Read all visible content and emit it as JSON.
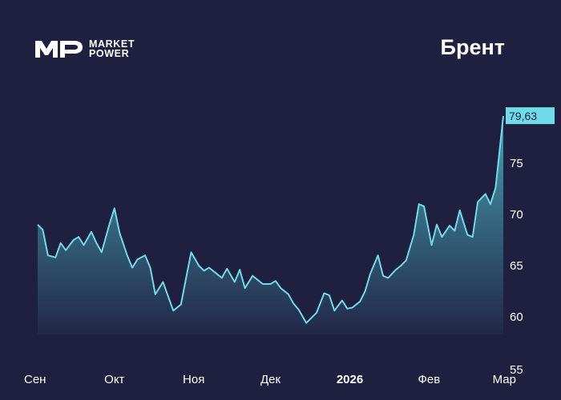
{
  "brand": {
    "logo_mark": "MP",
    "line1": "MARKET",
    "line2": "POWER"
  },
  "title": "Брент",
  "colors": {
    "background": "#1f2040",
    "line": "#6fdbe8",
    "label_box": "#6fdbe8",
    "text": "#ffffff"
  },
  "chart_data": {
    "type": "area",
    "title": "Брент",
    "xlabel": "",
    "ylabel": "",
    "ylim": [
      55,
      82
    ],
    "y_ticks": [
      60,
      65,
      70,
      75
    ],
    "y_axis_min_label": "55",
    "x_ticks": [
      {
        "label": "Сен",
        "date": "2025-09-01",
        "bold": false
      },
      {
        "label": "Окт",
        "date": "2025-10-01",
        "bold": false
      },
      {
        "label": "Ноя",
        "date": "2025-11-01",
        "bold": false
      },
      {
        "label": "Дек",
        "date": "2025-12-01",
        "bold": false
      },
      {
        "label": "2026",
        "date": "2026-01-01",
        "bold": true
      },
      {
        "label": "Фев",
        "date": "2026-02-01",
        "bold": false
      },
      {
        "label": "Мар",
        "date": "2026-03-01",
        "bold": false
      }
    ],
    "last_value_label": "79,63",
    "series": [
      {
        "values": [
          [
            "2025-09-01",
            69.0
          ],
          [
            "2025-09-03",
            68.5
          ],
          [
            "2025-09-05",
            66.0
          ],
          [
            "2025-09-08",
            65.8
          ],
          [
            "2025-09-10",
            67.2
          ],
          [
            "2025-09-12",
            66.5
          ],
          [
            "2025-09-15",
            67.5
          ],
          [
            "2025-09-17",
            67.8
          ],
          [
            "2025-09-19",
            67.0
          ],
          [
            "2025-09-22",
            68.3
          ],
          [
            "2025-09-24",
            67.2
          ],
          [
            "2025-09-26",
            66.3
          ],
          [
            "2025-09-29",
            69.0
          ],
          [
            "2025-10-01",
            70.6
          ],
          [
            "2025-10-03",
            68.2
          ],
          [
            "2025-10-06",
            66.0
          ],
          [
            "2025-10-08",
            64.8
          ],
          [
            "2025-10-10",
            65.6
          ],
          [
            "2025-10-13",
            66.0
          ],
          [
            "2025-10-15",
            64.8
          ],
          [
            "2025-10-17",
            62.2
          ],
          [
            "2025-10-20",
            63.4
          ],
          [
            "2025-10-22",
            62.0
          ],
          [
            "2025-10-24",
            60.6
          ],
          [
            "2025-10-27",
            61.2
          ],
          [
            "2025-10-29",
            63.8
          ],
          [
            "2025-10-31",
            66.3
          ],
          [
            "2025-11-03",
            65.0
          ],
          [
            "2025-11-05",
            64.5
          ],
          [
            "2025-11-07",
            64.8
          ],
          [
            "2025-11-10",
            64.2
          ],
          [
            "2025-11-12",
            63.8
          ],
          [
            "2025-11-14",
            64.7
          ],
          [
            "2025-11-17",
            63.4
          ],
          [
            "2025-11-19",
            64.6
          ],
          [
            "2025-11-21",
            62.8
          ],
          [
            "2025-11-24",
            64.0
          ],
          [
            "2025-11-26",
            63.6
          ],
          [
            "2025-11-28",
            63.2
          ],
          [
            "2025-12-01",
            63.2
          ],
          [
            "2025-12-03",
            63.5
          ],
          [
            "2025-12-05",
            62.8
          ],
          [
            "2025-12-08",
            62.2
          ],
          [
            "2025-12-10",
            61.3
          ],
          [
            "2025-12-12",
            60.7
          ],
          [
            "2025-12-15",
            59.4
          ],
          [
            "2025-12-17",
            59.9
          ],
          [
            "2025-12-19",
            60.4
          ],
          [
            "2025-12-22",
            62.3
          ],
          [
            "2025-12-24",
            62.1
          ],
          [
            "2025-12-26",
            60.6
          ],
          [
            "2025-12-29",
            61.6
          ],
          [
            "2025-12-31",
            60.8
          ],
          [
            "2026-01-02",
            60.9
          ],
          [
            "2026-01-05",
            61.5
          ],
          [
            "2026-01-07",
            62.5
          ],
          [
            "2026-01-09",
            64.2
          ],
          [
            "2026-01-12",
            66.0
          ],
          [
            "2026-01-14",
            64.0
          ],
          [
            "2026-01-16",
            63.8
          ],
          [
            "2026-01-19",
            64.6
          ],
          [
            "2026-01-21",
            65.0
          ],
          [
            "2026-01-23",
            65.5
          ],
          [
            "2026-01-26",
            68.0
          ],
          [
            "2026-01-28",
            71.0
          ],
          [
            "2026-01-30",
            70.8
          ],
          [
            "2026-02-02",
            67.0
          ],
          [
            "2026-02-04",
            69.0
          ],
          [
            "2026-02-06",
            67.8
          ],
          [
            "2026-02-09",
            68.9
          ],
          [
            "2026-02-11",
            68.4
          ],
          [
            "2026-02-13",
            70.4
          ],
          [
            "2026-02-16",
            68.0
          ],
          [
            "2026-02-18",
            67.8
          ],
          [
            "2026-02-20",
            71.2
          ],
          [
            "2026-02-23",
            72.0
          ],
          [
            "2026-02-25",
            71.0
          ],
          [
            "2026-02-27",
            72.6
          ],
          [
            "2026-03-02",
            79.6
          ]
        ]
      }
    ]
  }
}
